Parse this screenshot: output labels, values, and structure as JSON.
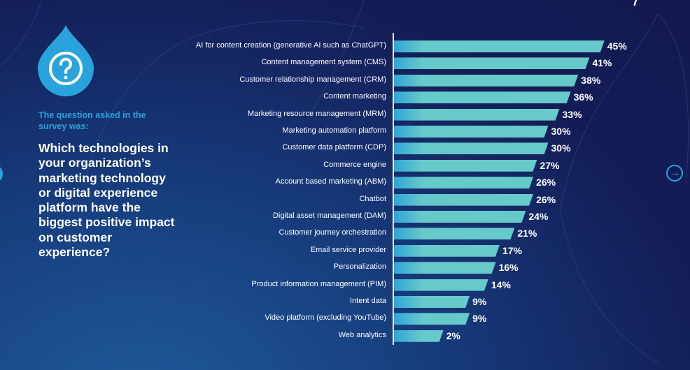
{
  "page_number": "7",
  "intro": {
    "label": "The question asked in the survey was:",
    "question": "Which technologies in your organization’s marketing technology or digital experience platform have the biggest positive impact on customer experience?"
  },
  "nav": {
    "next_icon": "arrow-right-circle-icon",
    "prev_icon": "arrow-left-circle-icon"
  },
  "colors": {
    "bar": "#66c9ca",
    "accent": "#2aa3dd",
    "background": "#131c55"
  },
  "chart_data": {
    "type": "bar",
    "orientation": "horizontal",
    "title": "",
    "xlabel": "",
    "ylabel": "",
    "xlim": [
      0,
      45
    ],
    "grid": false,
    "categories": [
      "AI for content creation (generative AI such as ChatGPT)",
      "Content management system (CMS)",
      "Customer relationship management (CRM)",
      "Content marketing",
      "Marketing resource management (MRM)",
      "Marketing automation platform",
      "Customer data platform (CDP)",
      "Commerce engine",
      "Account based marketing (ABM)",
      "Chatbot",
      "Digital asset management (DAM)",
      "Customer journey orchestration",
      "Email service provider",
      "Personalization",
      "Product information management (PIM)",
      "Intent data",
      "Video platform (excluding YouTube)",
      "Web analytics"
    ],
    "values": [
      45,
      41,
      38,
      36,
      33,
      30,
      30,
      27,
      26,
      26,
      24,
      21,
      17,
      16,
      14,
      9,
      9,
      2
    ],
    "labels": [
      "45%",
      "41%",
      "38%",
      "36%",
      "33%",
      "30%",
      "30%",
      "27%",
      "26%",
      "26%",
      "24%",
      "21%",
      "17%",
      "16%",
      "14%",
      "9%",
      "9%",
      "2%"
    ]
  }
}
